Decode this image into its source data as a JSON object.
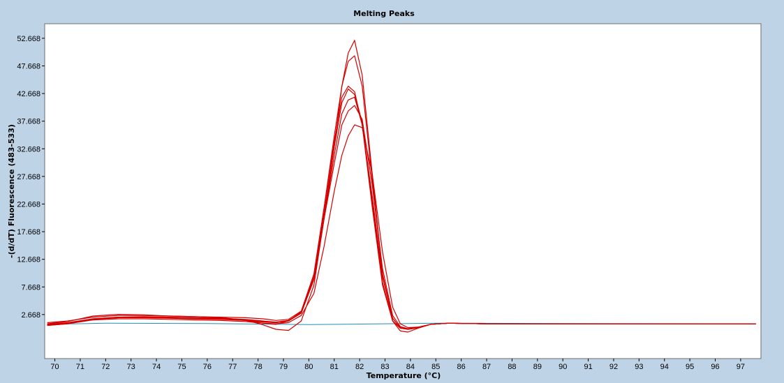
{
  "chart_data": {
    "type": "line",
    "title": "Melting Peaks",
    "xlabel": "Temperature (°C)",
    "ylabel": "-(d/dT) Fluorescence (483-533)",
    "xlim": [
      69.6,
      97.8
    ],
    "ylim": [
      -5.3,
      55.3
    ],
    "x_ticks": [
      "70",
      "71",
      "72",
      "73",
      "74",
      "75",
      "76",
      "77",
      "78",
      "79",
      "80",
      "81",
      "82",
      "83",
      "84",
      "85",
      "86",
      "87",
      "88",
      "89",
      "90",
      "91",
      "92",
      "93",
      "94",
      "95",
      "96",
      "97"
    ],
    "y_ticks": [
      "2.668",
      "7.668",
      "12.668",
      "17.668",
      "22.668",
      "27.668",
      "32.668",
      "37.668",
      "42.668",
      "47.668",
      "52.668"
    ],
    "grid": false,
    "colors": {
      "sample": "#d40000",
      "baseline": "#1f8fb8",
      "plot_bg": "#ffffff",
      "frame_bg": "#bfd3e6"
    },
    "series": [
      {
        "x": [
          69.7,
          70.5,
          71.5,
          72.5,
          73.5,
          74.5,
          75.5,
          76.5,
          77.5,
          78.2,
          78.7,
          79.2,
          79.7,
          80.2,
          80.6,
          81.0,
          81.3,
          81.55,
          81.8,
          82.1,
          82.5,
          82.9,
          83.3,
          83.6,
          83.9,
          84.3,
          84.8,
          85.5,
          87.0,
          90.0,
          93.0,
          97.6
        ],
        "y": [
          0.7,
          1.0,
          1.8,
          2.1,
          2.2,
          2.1,
          2.0,
          1.9,
          1.6,
          1.1,
          0.9,
          1.5,
          3.2,
          10.0,
          22.0,
          35.0,
          44.0,
          48.5,
          49.5,
          44.0,
          27.0,
          10.0,
          2.0,
          0.3,
          0.0,
          0.3,
          0.9,
          1.1,
          1.0,
          1.0,
          1.0,
          1.0
        ]
      },
      {
        "x": [
          69.7,
          70.5,
          71.5,
          72.5,
          73.5,
          74.5,
          75.5,
          76.5,
          77.5,
          78.2,
          78.7,
          79.2,
          79.7,
          80.2,
          80.6,
          81.0,
          81.3,
          81.55,
          81.8,
          82.1,
          82.5,
          82.9,
          83.3,
          83.6,
          83.9,
          84.3,
          84.8,
          85.5,
          87.0,
          90.0,
          93.0,
          97.6
        ],
        "y": [
          1.2,
          1.5,
          2.2,
          2.5,
          2.5,
          2.4,
          2.3,
          2.2,
          2.1,
          1.9,
          1.6,
          1.8,
          3.3,
          10.0,
          22.0,
          34.0,
          42.0,
          44.0,
          43.0,
          37.0,
          22.0,
          8.0,
          1.5,
          0.2,
          0.0,
          0.3,
          0.9,
          1.1,
          1.0,
          1.0,
          1.0,
          1.0
        ]
      },
      {
        "x": [
          69.7,
          70.5,
          71.5,
          72.5,
          73.5,
          74.5,
          75.5,
          76.5,
          77.5,
          78.2,
          78.7,
          79.2,
          79.7,
          80.2,
          80.6,
          81.0,
          81.3,
          81.55,
          81.8,
          82.1,
          82.5,
          82.9,
          83.3,
          83.6,
          83.9,
          84.3,
          84.8,
          85.5,
          87.0,
          90.0,
          93.0,
          97.6
        ],
        "y": [
          0.9,
          1.2,
          1.9,
          2.2,
          2.3,
          2.2,
          2.1,
          2.0,
          1.8,
          1.5,
          1.3,
          1.6,
          3.0,
          9.5,
          21.0,
          33.0,
          41.0,
          43.5,
          42.5,
          37.5,
          23.0,
          8.5,
          1.5,
          0.2,
          0.0,
          0.3,
          0.9,
          1.1,
          1.0,
          1.0,
          1.0,
          1.0
        ]
      },
      {
        "x": [
          69.7,
          70.5,
          71.5,
          72.5,
          73.5,
          74.5,
          75.5,
          76.5,
          77.5,
          78.2,
          78.7,
          79.2,
          79.7,
          80.2,
          80.6,
          81.0,
          81.3,
          81.55,
          81.8,
          82.1,
          82.5,
          82.9,
          83.3,
          83.6,
          83.9,
          84.3,
          84.8,
          85.5,
          87.0,
          90.0,
          93.0,
          97.6
        ],
        "y": [
          0.8,
          1.1,
          1.8,
          2.1,
          2.1,
          2.0,
          1.9,
          1.8,
          1.6,
          1.3,
          1.2,
          1.5,
          2.9,
          9.0,
          20.0,
          31.5,
          39.0,
          41.5,
          42.0,
          37.0,
          24.0,
          9.5,
          2.0,
          0.3,
          0.0,
          0.3,
          0.9,
          1.1,
          1.0,
          1.0,
          1.0,
          1.0
        ]
      },
      {
        "x": [
          69.7,
          70.5,
          71.5,
          72.5,
          73.5,
          74.5,
          75.5,
          76.5,
          77.5,
          78.2,
          78.7,
          79.2,
          79.7,
          80.2,
          80.6,
          81.0,
          81.3,
          81.55,
          81.8,
          82.1,
          82.5,
          82.9,
          83.3,
          83.6,
          83.9,
          84.3,
          84.8,
          85.5,
          87.0,
          90.0,
          93.0,
          97.6
        ],
        "y": [
          0.8,
          1.1,
          1.9,
          2.2,
          2.2,
          2.1,
          2.0,
          1.9,
          1.7,
          1.4,
          1.2,
          1.5,
          3.0,
          9.0,
          20.0,
          30.0,
          37.0,
          39.5,
          40.5,
          38.0,
          26.0,
          11.0,
          2.5,
          0.5,
          0.1,
          0.4,
          0.9,
          1.1,
          1.0,
          1.0,
          1.0,
          1.0
        ]
      },
      {
        "x": [
          69.7,
          70.5,
          71.5,
          72.5,
          73.5,
          74.5,
          75.5,
          76.5,
          77.5,
          78.2,
          78.7,
          79.2,
          79.7,
          80.2,
          80.6,
          81.0,
          81.3,
          81.55,
          81.8,
          82.1,
          82.5,
          82.9,
          83.3,
          83.6,
          83.9,
          84.3,
          84.8,
          85.5,
          87.0,
          90.0,
          93.0,
          97.6
        ],
        "y": [
          0.7,
          1.0,
          1.7,
          1.9,
          1.9,
          1.8,
          1.7,
          1.6,
          1.4,
          1.1,
          1.0,
          1.2,
          2.5,
          6.5,
          15.0,
          25.0,
          31.5,
          35.0,
          37.0,
          36.5,
          28.0,
          14.0,
          4.0,
          1.0,
          0.3,
          0.4,
          0.9,
          1.1,
          1.0,
          1.0,
          1.0,
          1.0
        ]
      },
      {
        "x": [
          69.7,
          70.5,
          71.5,
          72.5,
          73.5,
          74.5,
          75.5,
          76.5,
          77.5,
          78.2,
          78.7,
          79.2,
          79.7,
          80.2,
          80.6,
          81.0,
          81.3,
          81.55,
          81.8,
          82.1,
          82.5,
          82.9,
          83.3,
          83.6,
          83.9,
          84.3,
          84.8,
          85.5,
          87.0,
          90.0,
          93.0,
          97.6
        ],
        "y": [
          1.0,
          1.4,
          2.4,
          2.7,
          2.6,
          2.4,
          2.3,
          2.1,
          1.7,
          0.8,
          0.0,
          -0.2,
          1.5,
          8.0,
          20.0,
          33.0,
          44.0,
          50.0,
          52.3,
          46.0,
          28.0,
          10.0,
          1.5,
          -0.3,
          -0.5,
          0.2,
          0.9,
          1.1,
          1.0,
          1.0,
          1.0,
          1.0
        ]
      }
    ],
    "baseline": {
      "x": [
        69.7,
        72.0,
        76.0,
        79.0,
        80.0,
        82.0,
        83.0,
        84.0,
        85.0,
        86.0,
        90.0,
        97.6
      ],
      "y": [
        0.9,
        1.1,
        1.05,
        0.9,
        0.85,
        0.95,
        1.0,
        1.05,
        1.1,
        1.1,
        1.05,
        1.0
      ]
    }
  }
}
